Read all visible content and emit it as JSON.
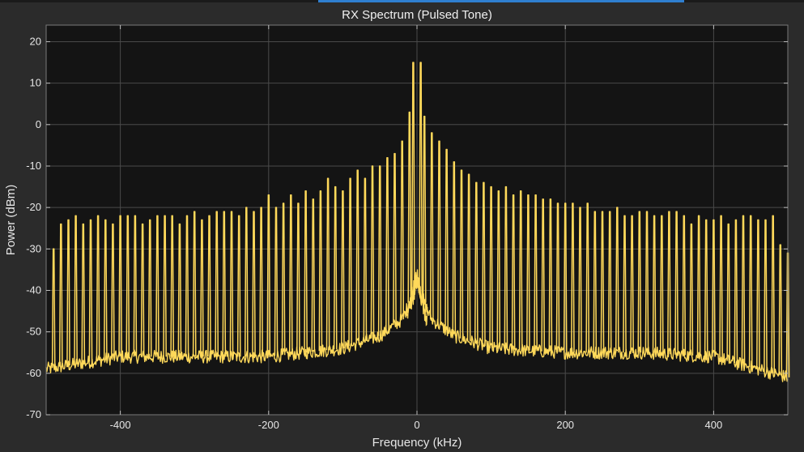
{
  "chart_data": {
    "type": "line",
    "title": "RX Spectrum (Pulsed Tone)",
    "xlabel": "Frequency (kHz)",
    "ylabel": "Power (dBm)",
    "xlim": [
      -500,
      500
    ],
    "ylim": [
      -70,
      24
    ],
    "xticks": [
      -400,
      -200,
      0,
      200,
      400
    ],
    "yticks": [
      20,
      10,
      0,
      -10,
      -20,
      -30,
      -40,
      -50,
      -60,
      -70
    ],
    "grid": true,
    "background_color": "#141414",
    "figure_color": "#2b2b2b",
    "line_color": "#ffd95a",
    "series": [
      {
        "harmonic_spacing_khz": 10,
        "peaks": {
          "x": [
            -490,
            -480,
            -470,
            -460,
            -450,
            -440,
            -430,
            -420,
            -410,
            -400,
            -390,
            -380,
            -370,
            -360,
            -350,
            -340,
            -330,
            -320,
            -310,
            -300,
            -290,
            -280,
            -270,
            -260,
            -250,
            -240,
            -230,
            -220,
            -210,
            -200,
            -190,
            -180,
            -170,
            -160,
            -150,
            -140,
            -130,
            -120,
            -110,
            -100,
            -90,
            -80,
            -70,
            -60,
            -50,
            -40,
            -30,
            -20,
            -10,
            -5,
            5,
            10,
            20,
            30,
            40,
            50,
            60,
            70,
            80,
            90,
            100,
            110,
            120,
            130,
            140,
            150,
            160,
            170,
            180,
            190,
            200,
            210,
            220,
            230,
            240,
            250,
            260,
            270,
            280,
            290,
            300,
            310,
            320,
            330,
            340,
            350,
            360,
            370,
            380,
            390,
            400,
            410,
            420,
            430,
            440,
            450,
            460,
            470,
            480,
            490,
            500
          ],
          "y": [
            -30,
            -24,
            -23,
            -22,
            -24,
            -23,
            -22,
            -23,
            -24,
            -22,
            -22,
            -22,
            -24,
            -23,
            -22,
            -22,
            -22,
            -24,
            -22,
            -21,
            -23,
            -22,
            -21,
            -21,
            -21,
            -22,
            -20,
            -21,
            -20,
            -17,
            -20,
            -19,
            -17,
            -19,
            -16,
            -18,
            -16,
            -13,
            -15,
            -16,
            -13,
            -11,
            -13,
            -10,
            -10,
            -8,
            -7,
            -4,
            3,
            15,
            15,
            2,
            -2,
            -4,
            -6,
            -9,
            -11,
            -12,
            -14,
            -14,
            -15,
            -16,
            -15,
            -17,
            -16,
            -17,
            -17,
            -18,
            -18,
            -19,
            -19,
            -19,
            -20,
            -19,
            -21,
            -21,
            -21,
            -20,
            -22,
            -22,
            -21,
            -21,
            -22,
            -22,
            -21,
            -21,
            -22,
            -24,
            -22,
            -23,
            -23,
            -22,
            -24,
            -23,
            -22,
            -22,
            -23,
            -23,
            -22,
            -29,
            -31
          ]
        },
        "noise_floor": {
          "x": [
            -500,
            -400,
            -300,
            -200,
            -100,
            -50,
            -20,
            -5,
            0,
            5,
            20,
            50,
            100,
            200,
            300,
            400,
            500
          ],
          "y": [
            -59,
            -56,
            -56,
            -56,
            -54,
            -51,
            -47,
            -41,
            -37,
            -41,
            -47,
            -51,
            -54,
            -55,
            -55,
            -56,
            -61
          ]
        }
      }
    ]
  }
}
